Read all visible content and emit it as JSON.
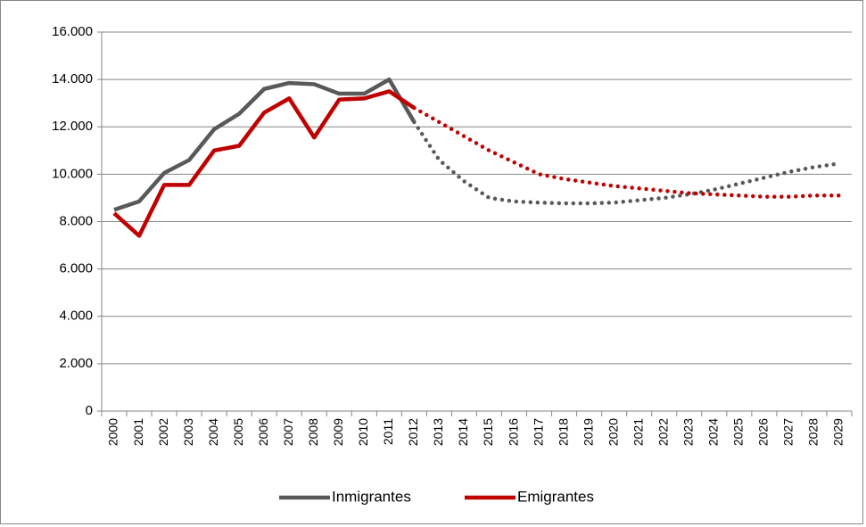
{
  "chart_data": {
    "type": "line",
    "categories": [
      "2000",
      "2001",
      "2002",
      "2003",
      "2004",
      "2005",
      "2006",
      "2007",
      "2008",
      "2009",
      "2010",
      "2011",
      "2012",
      "2013",
      "2014",
      "2015",
      "2016",
      "2017",
      "2018",
      "2019",
      "2020",
      "2021",
      "2022",
      "2023",
      "2024",
      "2025",
      "2026",
      "2027",
      "2028",
      "2029"
    ],
    "series": [
      {
        "name": "Inmigrantes",
        "color": "#595959",
        "values": [
          8500,
          8850,
          10050,
          10600,
          11900,
          12550,
          13600,
          13850,
          13800,
          13400,
          13400,
          14000,
          12200,
          null,
          null,
          null,
          null,
          null,
          null,
          null,
          null,
          null,
          null,
          null,
          null,
          null,
          null,
          null,
          null,
          null
        ],
        "projected": [
          null,
          null,
          null,
          null,
          null,
          null,
          null,
          null,
          null,
          null,
          null,
          null,
          12200,
          10600,
          9700,
          9000,
          8850,
          8800,
          8770,
          8770,
          8800,
          8900,
          9000,
          9150,
          9350,
          9600,
          9850,
          10100,
          10300,
          10450
        ]
      },
      {
        "name": "Emigrantes",
        "color": "#c00000",
        "values": [
          8350,
          7400,
          9550,
          9550,
          11000,
          11200,
          12600,
          13200,
          11550,
          13150,
          13200,
          13500,
          12800,
          null,
          null,
          null,
          null,
          null,
          null,
          null,
          null,
          null,
          null,
          null,
          null,
          null,
          null,
          null,
          null,
          null
        ],
        "projected": [
          null,
          null,
          null,
          null,
          null,
          null,
          null,
          null,
          null,
          null,
          null,
          null,
          12800,
          12200,
          11600,
          11000,
          10500,
          10000,
          9800,
          9650,
          9500,
          9400,
          9300,
          9200,
          9150,
          9100,
          9050,
          9050,
          9100,
          9100
        ]
      }
    ],
    "ylim": [
      0,
      16000
    ],
    "yticks": [
      0,
      {
        "value": 2000,
        "label": "2.000"
      },
      {
        "value": 4000,
        "label": "4.000"
      },
      {
        "value": 6000,
        "label": "6.000"
      },
      {
        "value": 8000,
        "label": "8.000"
      },
      {
        "value": 10000,
        "label": "10.000"
      },
      {
        "value": 12000,
        "label": "12.000"
      },
      {
        "value": 14000,
        "label": "14.000"
      },
      {
        "value": 16000,
        "label": "16.000"
      }
    ],
    "grid": true,
    "legend": "bottom"
  }
}
